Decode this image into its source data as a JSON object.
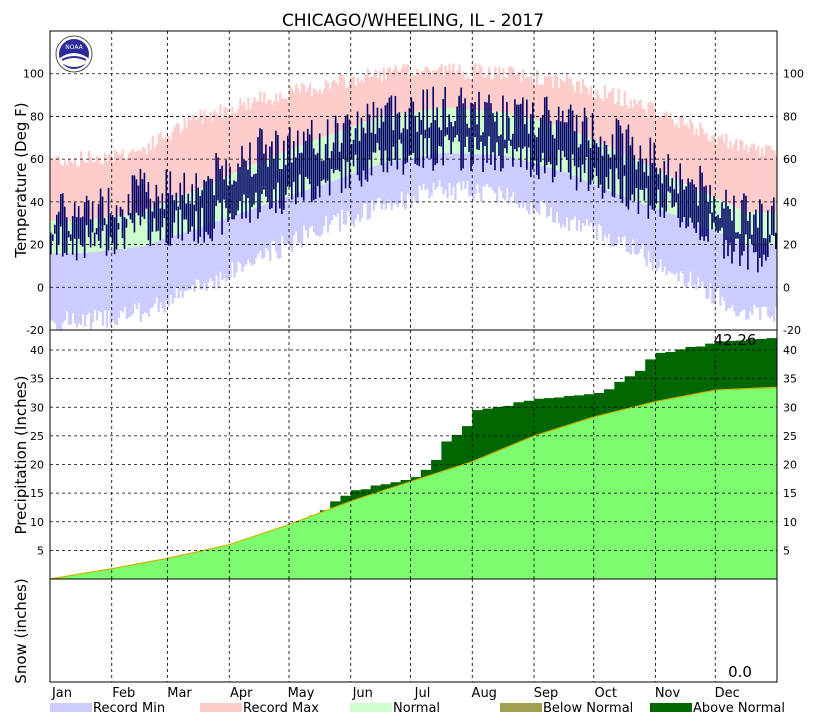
{
  "chart_data": {
    "type": "climate-summary",
    "title": "CHICAGO/WHEELING, IL - 2017",
    "months": [
      "Jan",
      "Feb",
      "Mar",
      "Apr",
      "May",
      "Jun",
      "Jul",
      "Aug",
      "Sep",
      "Oct",
      "Nov",
      "Dec"
    ],
    "temperature": {
      "ylabel": "Temperature (Deg F)",
      "ylim": [
        -20,
        120
      ],
      "ticks": [
        -20,
        0,
        20,
        40,
        60,
        80,
        100
      ],
      "normal_high_monthly": [
        31,
        35,
        46,
        59,
        70,
        80,
        84,
        82,
        75,
        62,
        48,
        35
      ],
      "normal_low_monthly": [
        16,
        19,
        28,
        38,
        48,
        58,
        63,
        62,
        54,
        42,
        32,
        20
      ],
      "record_max_monthly": [
        60,
        64,
        80,
        88,
        94,
        100,
        102,
        100,
        96,
        88,
        76,
        64
      ],
      "record_min_monthly": [
        -16,
        -12,
        0,
        14,
        28,
        38,
        46,
        44,
        32,
        20,
        4,
        -12
      ],
      "observed_high_monthly": [
        34,
        45,
        48,
        65,
        68,
        82,
        84,
        80,
        78,
        68,
        50,
        33
      ],
      "observed_low_monthly": [
        20,
        28,
        28,
        40,
        48,
        60,
        64,
        62,
        56,
        46,
        32,
        16
      ]
    },
    "precipitation": {
      "ylabel": "Precipitation (Inches)",
      "ylim": [
        0,
        43.5
      ],
      "ticks": [
        5,
        10,
        15,
        20,
        25,
        30,
        35,
        40
      ],
      "total_label": "42.26",
      "observed_cumulative_month_end": [
        1.9,
        2.9,
        4.3,
        9.5,
        15.5,
        17.8,
        29.5,
        31.5,
        32.5,
        39.5,
        41.5,
        42.26
      ],
      "normal_cumulative_month_end": [
        1.8,
        3.6,
        6.0,
        9.5,
        13.6,
        17.0,
        20.5,
        25.0,
        28.3,
        31.0,
        33.0,
        33.5
      ]
    },
    "snow": {
      "ylabel": "Snow (inches)",
      "total_label": "0.0"
    },
    "legend": [
      {
        "label": "Record Min",
        "color": "#CCCCFF"
      },
      {
        "label": "Record Max",
        "color": "#FFCCCC"
      },
      {
        "label": "Normal",
        "color": "#CCFFCC"
      },
      {
        "label": "Below Normal",
        "color": "#A0A050"
      },
      {
        "label": "Above Normal",
        "color": "#006600"
      }
    ],
    "grid": true,
    "logo": "noaa-logo"
  }
}
